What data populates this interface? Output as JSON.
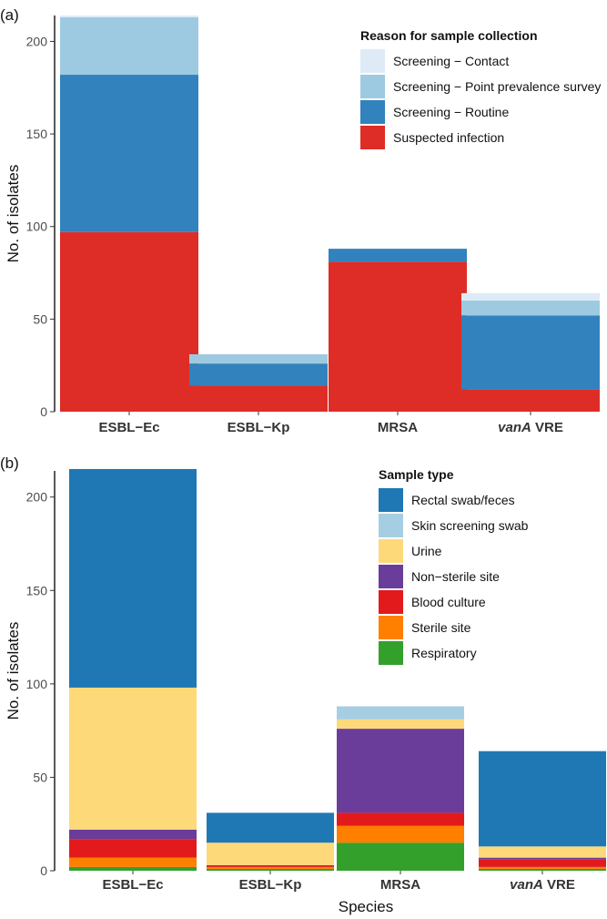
{
  "chart_data": [
    {
      "type": "bar",
      "panel_label": "(a)",
      "categories": [
        {
          "main": "ESBL−Ec",
          "italic": ""
        },
        {
          "main": "ESBL−Kp",
          "italic": ""
        },
        {
          "main": "MRSA",
          "italic": ""
        },
        {
          "main": " VRE",
          "italic": "vanA"
        }
      ],
      "ylabel": "No. of isolates",
      "xlabel": "",
      "ylim": [
        0,
        214
      ],
      "yticks": [
        0,
        50,
        100,
        150,
        200
      ],
      "legend_title": "Reason for sample collection",
      "legend_placement": "top-right",
      "stack_order": [
        "Suspected infection",
        "Screening − Routine",
        "Screening − Point prevalence survey",
        "Screening − Contact"
      ],
      "series": [
        {
          "name": "Screening − Contact",
          "color": "#deebf7",
          "values": [
            1,
            0,
            0,
            4
          ]
        },
        {
          "name": "Screening − Point prevalence survey",
          "color": "#9ecae1",
          "values": [
            31,
            5,
            0,
            8
          ]
        },
        {
          "name": "Screening − Routine",
          "color": "#3182bd",
          "values": [
            85,
            12,
            7,
            40
          ]
        },
        {
          "name": "Suspected infection",
          "color": "#de2d26",
          "values": [
            97,
            14,
            81,
            12
          ]
        }
      ]
    },
    {
      "type": "bar",
      "panel_label": "(b)",
      "categories": [
        {
          "main": "ESBL−Ec",
          "italic": ""
        },
        {
          "main": "ESBL−Kp",
          "italic": ""
        },
        {
          "main": "MRSA",
          "italic": ""
        },
        {
          "main": " VRE",
          "italic": "vanA"
        }
      ],
      "ylabel": "No. of isolates",
      "xlabel": "Species",
      "ylim": [
        0,
        214
      ],
      "yticks": [
        0,
        50,
        100,
        150,
        200
      ],
      "legend_title": "Sample type",
      "legend_placement": "top-right",
      "stack_order": [
        "Respiratory",
        "Sterile site",
        "Blood culture",
        "Non−sterile site",
        "Urine",
        "Skin screening swab",
        "Rectal swab/feces"
      ],
      "series": [
        {
          "name": "Rectal swab/feces",
          "color": "#1f78b4",
          "values": [
            117,
            16,
            0,
            51
          ]
        },
        {
          "name": "Skin screening swab",
          "color": "#a6cee3",
          "values": [
            0,
            0,
            7,
            0
          ]
        },
        {
          "name": "Urine",
          "color": "#fdd97a",
          "values": [
            76,
            12,
            5,
            6
          ]
        },
        {
          "name": "Non−sterile site",
          "color": "#6a3d9a",
          "values": [
            5,
            0,
            45,
            1
          ]
        },
        {
          "name": "Blood culture",
          "color": "#e31a1c",
          "values": [
            10,
            1,
            7,
            4
          ]
        },
        {
          "name": "Sterile site",
          "color": "#ff7f00",
          "values": [
            5,
            1,
            9,
            1
          ]
        },
        {
          "name": "Respiratory",
          "color": "#33a02c",
          "values": [
            2,
            1,
            15,
            1
          ]
        }
      ]
    }
  ]
}
